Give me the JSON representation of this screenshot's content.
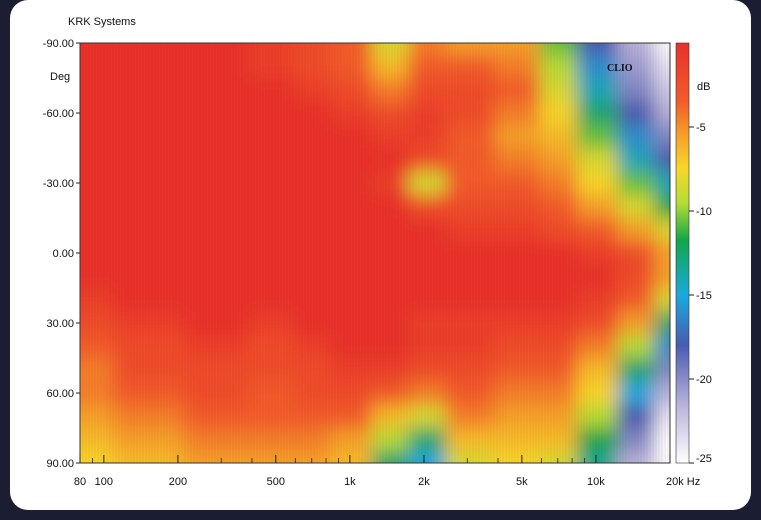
{
  "header": {
    "brand": "KRK Systems",
    "watermark": "CLIO"
  },
  "chart_data": {
    "type": "heatmap",
    "title": "",
    "brand_label": "KRK Systems",
    "x_axis": {
      "scale": "log",
      "unit": "Hz",
      "range": [
        80,
        20000
      ],
      "tick_labels": [
        {
          "value": 80,
          "label": "80"
        },
        {
          "value": 100,
          "label": "100"
        },
        {
          "value": 200,
          "label": "200"
        },
        {
          "value": 500,
          "label": "500"
        },
        {
          "value": 1000,
          "label": "1k"
        },
        {
          "value": 2000,
          "label": "2k"
        },
        {
          "value": 5000,
          "label": "5k"
        },
        {
          "value": 10000,
          "label": "10k"
        },
        {
          "value": 20000,
          "label": "20k Hz"
        }
      ],
      "minor_ticks": [
        90,
        300,
        400,
        600,
        700,
        800,
        900,
        3000,
        4000,
        6000,
        7000,
        8000,
        9000
      ]
    },
    "y_axis": {
      "unit": "Deg",
      "range": [
        -90,
        90
      ],
      "inverted": true,
      "tick_labels": [
        {
          "value": -90,
          "label": "-90.00"
        },
        {
          "value": -60,
          "label": "-60.00"
        },
        {
          "value": -30,
          "label": "-30.00"
        },
        {
          "value": 0,
          "label": "0.00"
        },
        {
          "value": 30,
          "label": "30.00"
        },
        {
          "value": 60,
          "label": "60.00"
        },
        {
          "value": 90,
          "label": "90.00"
        }
      ]
    },
    "colorbar": {
      "unit": "dB",
      "range": [
        -25,
        0
      ],
      "tick_labels": [
        {
          "value": -5,
          "label": "-5"
        },
        {
          "value": -10,
          "label": "-10"
        },
        {
          "value": -15,
          "label": "-15"
        },
        {
          "value": -20,
          "label": "-20"
        },
        {
          "value": -25,
          "label": "-25"
        }
      ],
      "colors": [
        "#e8302c",
        "#f5862a",
        "#f7d72b",
        "#b5dd36",
        "#13a649",
        "#1aa9df",
        "#4a5bb0",
        "#b7b2da",
        "#ffffff"
      ]
    },
    "frequency_samples_hz": [
      80,
      150,
      300,
      500,
      700,
      1000,
      1500,
      2000,
      3000,
      5000,
      7000,
      10000,
      15000,
      20000
    ],
    "angle_samples_deg": [
      -90,
      -80,
      -70,
      -60,
      -50,
      -40,
      -30,
      -20,
      -10,
      0,
      10,
      20,
      30,
      40,
      50,
      60,
      70,
      80,
      90
    ],
    "level_db": [
      [
        0,
        0,
        0,
        -1,
        -2,
        -3,
        -8,
        -4,
        -5,
        -5,
        -10,
        -18,
        -22,
        -25
      ],
      [
        0,
        0,
        0,
        -1,
        -2,
        -3,
        -6,
        -3,
        -3,
        -4,
        -9,
        -16,
        -21,
        -24
      ],
      [
        0,
        0,
        0,
        0,
        -1,
        -2,
        -4,
        -2,
        -2,
        -3,
        -8,
        -14,
        -20,
        -23
      ],
      [
        0,
        0,
        0,
        0,
        0,
        -1,
        -2,
        -1,
        -2,
        -4,
        -7,
        -12,
        -18,
        -22
      ],
      [
        0,
        0,
        0,
        0,
        0,
        0,
        -1,
        -1,
        -3,
        -5,
        -6,
        -10,
        -16,
        -20
      ],
      [
        0,
        0,
        0,
        0,
        0,
        0,
        0,
        -2,
        -3,
        -4,
        -5,
        -8,
        -14,
        -18
      ],
      [
        0,
        0,
        0,
        0,
        0,
        0,
        -1,
        -8,
        -3,
        -3,
        -4,
        -7,
        -10,
        -14
      ],
      [
        0,
        0,
        0,
        0,
        0,
        0,
        0,
        -2,
        -2,
        -2,
        -3,
        -5,
        -8,
        -11
      ],
      [
        0,
        0,
        0,
        0,
        0,
        0,
        0,
        0,
        -1,
        -1,
        -2,
        -3,
        -5,
        -8
      ],
      [
        0,
        0,
        0,
        0,
        0,
        0,
        0,
        0,
        0,
        0,
        0,
        -1,
        -2,
        -5
      ],
      [
        0,
        0,
        0,
        0,
        0,
        0,
        0,
        0,
        0,
        0,
        0,
        0,
        -2,
        -5
      ],
      [
        -1,
        0,
        0,
        0,
        0,
        0,
        0,
        0,
        0,
        0,
        0,
        -1,
        -3,
        -8
      ],
      [
        -2,
        -1,
        0,
        -1,
        0,
        0,
        0,
        -1,
        -1,
        -1,
        -1,
        -2,
        -5,
        -12
      ],
      [
        -3,
        -2,
        -1,
        -2,
        -1,
        0,
        0,
        -1,
        -1,
        -2,
        -2,
        -4,
        -9,
        -16
      ],
      [
        -4,
        -2,
        -2,
        -2,
        -2,
        -1,
        -1,
        -2,
        -2,
        -3,
        -3,
        -6,
        -12,
        -20
      ],
      [
        -4,
        -3,
        -2,
        -3,
        -2,
        -2,
        -3,
        -4,
        -3,
        -4,
        -4,
        -7,
        -15,
        -22
      ],
      [
        -5,
        -4,
        -3,
        -3,
        -3,
        -3,
        -6,
        -8,
        -4,
        -5,
        -5,
        -9,
        -18,
        -24
      ],
      [
        -6,
        -5,
        -4,
        -4,
        -4,
        -5,
        -9,
        -12,
        -6,
        -6,
        -6,
        -11,
        -20,
        -25
      ],
      [
        -7,
        -6,
        -5,
        -5,
        -5,
        -6,
        -12,
        -15,
        -8,
        -7,
        -8,
        -13,
        -22,
        -25
      ]
    ]
  }
}
